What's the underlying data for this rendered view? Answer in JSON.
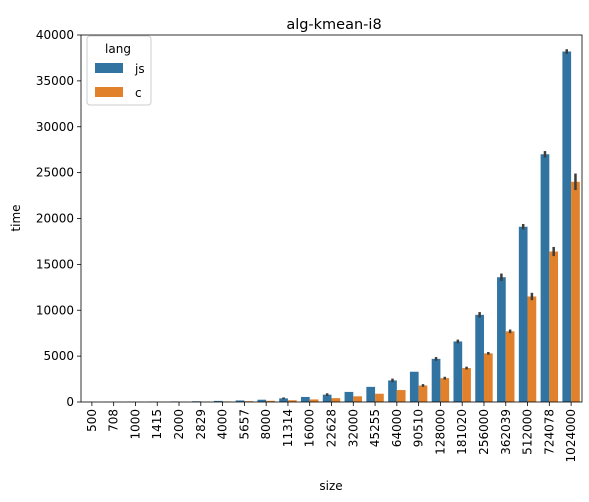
{
  "chart_data": {
    "type": "bar",
    "title": "alg-kmean-i8",
    "xlabel": "size",
    "ylabel": "time",
    "ylim": [
      0,
      40000
    ],
    "yticks": [
      0,
      5000,
      10000,
      15000,
      20000,
      25000,
      30000,
      35000,
      40000
    ],
    "categories": [
      "500",
      "708",
      "1000",
      "1415",
      "2000",
      "2829",
      "4000",
      "5657",
      "8000",
      "11314",
      "16000",
      "22628",
      "32000",
      "45255",
      "64000",
      "90510",
      "128000",
      "181020",
      "256000",
      "362039",
      "512000",
      "724078",
      "1024000"
    ],
    "series": [
      {
        "name": "js",
        "color": "#3274a1",
        "values": [
          10,
          20,
          30,
          40,
          60,
          80,
          120,
          170,
          250,
          400,
          550,
          800,
          1100,
          1650,
          2350,
          3300,
          4700,
          6600,
          9500,
          13600,
          19100,
          27000,
          38200
        ],
        "err": [
          0,
          0,
          0,
          0,
          0,
          0,
          0,
          0,
          0,
          100,
          0,
          150,
          0,
          0,
          200,
          0,
          200,
          200,
          300,
          400,
          300,
          350,
          250
        ]
      },
      {
        "name": "c",
        "color": "#e1812c",
        "values": [
          5,
          8,
          12,
          18,
          25,
          40,
          60,
          90,
          130,
          190,
          280,
          420,
          620,
          900,
          1300,
          1800,
          2600,
          3700,
          5300,
          7700,
          11500,
          16400,
          24000
        ],
        "err": [
          0,
          0,
          0,
          0,
          0,
          0,
          0,
          0,
          0,
          0,
          0,
          0,
          0,
          0,
          0,
          150,
          150,
          150,
          150,
          200,
          400,
          500,
          900
        ]
      }
    ],
    "legend": {
      "title": "lang",
      "position": "top-left"
    },
    "grid": false
  }
}
